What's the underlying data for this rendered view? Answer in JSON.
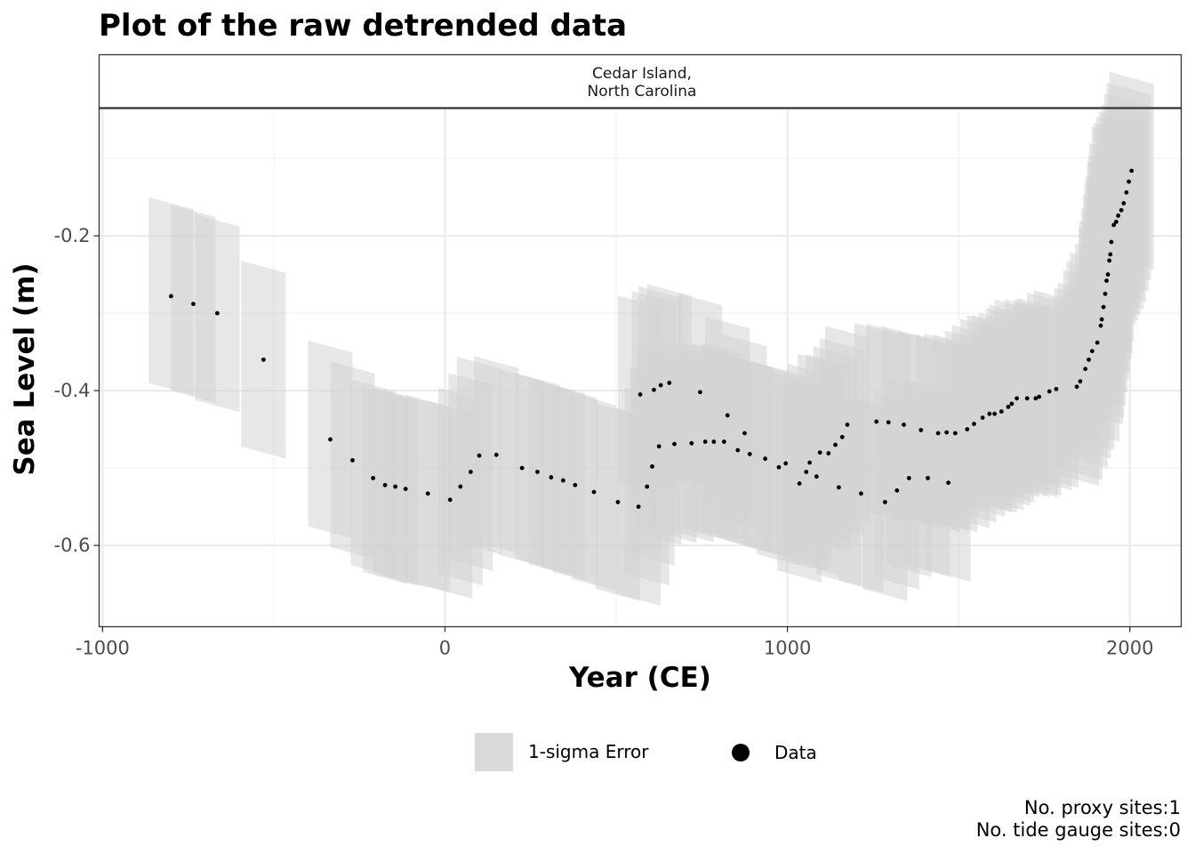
{
  "chart_data": {
    "type": "scatter",
    "title": "Plot of the raw detrended data",
    "facet_label": [
      "Cedar Island,",
      "North Carolina"
    ],
    "xlabel": "Year (CE)",
    "ylabel": "Sea Level (m)",
    "xlim": [
      -1010,
      2150
    ],
    "ylim": [
      -0.705,
      -0.035
    ],
    "x_ticks": [
      {
        "value": -1000,
        "label": "-1000"
      },
      {
        "value": 0,
        "label": "0"
      },
      {
        "value": 1000,
        "label": "1000"
      },
      {
        "value": 2000,
        "label": "2000"
      }
    ],
    "y_ticks": [
      {
        "value": -0.2,
        "label": "-0.2"
      },
      {
        "value": -0.4,
        "label": "-0.4"
      },
      {
        "value": -0.6,
        "label": "-0.6"
      }
    ],
    "grid": true,
    "legend_position": "bottom",
    "legend": [
      {
        "key": "error",
        "label": "1-sigma Error",
        "color": "#d9d9d9"
      },
      {
        "key": "data",
        "label": "Data",
        "color": "#000000"
      }
    ],
    "error_color": "#d3d3d3",
    "point_color": "#000000",
    "age_error_years": 65,
    "rsl_error_m": 0.12,
    "points": [
      [
        -800,
        -0.278
      ],
      [
        -735,
        -0.288
      ],
      [
        -665,
        -0.3
      ],
      [
        -530,
        -0.36
      ],
      [
        -335,
        -0.463
      ],
      [
        -270,
        -0.49
      ],
      [
        -210,
        -0.513
      ],
      [
        -175,
        -0.522
      ],
      [
        -145,
        -0.524
      ],
      [
        -115,
        -0.527
      ],
      [
        -50,
        -0.533
      ],
      [
        15,
        -0.541
      ],
      [
        45,
        -0.524
      ],
      [
        75,
        -0.505
      ],
      [
        100,
        -0.484
      ],
      [
        150,
        -0.483
      ],
      [
        225,
        -0.5
      ],
      [
        270,
        -0.505
      ],
      [
        310,
        -0.512
      ],
      [
        345,
        -0.516
      ],
      [
        380,
        -0.522
      ],
      [
        435,
        -0.531
      ],
      [
        505,
        -0.544
      ],
      [
        565,
        -0.55
      ],
      [
        570,
        -0.405
      ],
      [
        590,
        -0.524
      ],
      [
        605,
        -0.498
      ],
      [
        610,
        -0.399
      ],
      [
        625,
        -0.472
      ],
      [
        630,
        -0.393
      ],
      [
        655,
        -0.39
      ],
      [
        670,
        -0.469
      ],
      [
        720,
        -0.468
      ],
      [
        745,
        -0.402
      ],
      [
        760,
        -0.466
      ],
      [
        785,
        -0.466
      ],
      [
        815,
        -0.466
      ],
      [
        825,
        -0.432
      ],
      [
        855,
        -0.477
      ],
      [
        875,
        -0.455
      ],
      [
        890,
        -0.482
      ],
      [
        935,
        -0.488
      ],
      [
        975,
        -0.499
      ],
      [
        995,
        -0.494
      ],
      [
        1035,
        -0.52
      ],
      [
        1055,
        -0.505
      ],
      [
        1065,
        -0.493
      ],
      [
        1085,
        -0.511
      ],
      [
        1095,
        -0.48
      ],
      [
        1120,
        -0.481
      ],
      [
        1140,
        -0.47
      ],
      [
        1150,
        -0.525
      ],
      [
        1160,
        -0.46
      ],
      [
        1175,
        -0.444
      ],
      [
        1215,
        -0.533
      ],
      [
        1260,
        -0.44
      ],
      [
        1285,
        -0.544
      ],
      [
        1295,
        -0.441
      ],
      [
        1320,
        -0.529
      ],
      [
        1340,
        -0.444
      ],
      [
        1355,
        -0.513
      ],
      [
        1390,
        -0.451
      ],
      [
        1410,
        -0.513
      ],
      [
        1440,
        -0.455
      ],
      [
        1465,
        -0.454
      ],
      [
        1470,
        -0.519
      ],
      [
        1490,
        -0.455
      ],
      [
        1525,
        -0.45
      ],
      [
        1545,
        -0.443
      ],
      [
        1570,
        -0.435
      ],
      [
        1590,
        -0.43
      ],
      [
        1605,
        -0.43
      ],
      [
        1625,
        -0.427
      ],
      [
        1645,
        -0.421
      ],
      [
        1655,
        -0.417
      ],
      [
        1670,
        -0.41
      ],
      [
        1700,
        -0.41
      ],
      [
        1725,
        -0.41
      ],
      [
        1735,
        -0.408
      ],
      [
        1765,
        -0.401
      ],
      [
        1785,
        -0.398
      ],
      [
        1845,
        -0.395
      ],
      [
        1855,
        -0.388
      ],
      [
        1870,
        -0.372
      ],
      [
        1880,
        -0.36
      ],
      [
        1890,
        -0.349
      ],
      [
        1905,
        -0.338
      ],
      [
        1915,
        -0.316
      ],
      [
        1918,
        -0.308
      ],
      [
        1923,
        -0.292
      ],
      [
        1928,
        -0.275
      ],
      [
        1932,
        -0.258
      ],
      [
        1936,
        -0.25
      ],
      [
        1940,
        -0.232
      ],
      [
        1943,
        -0.224
      ],
      [
        1946,
        -0.208
      ],
      [
        1953,
        -0.186
      ],
      [
        1960,
        -0.182
      ],
      [
        1966,
        -0.174
      ],
      [
        1975,
        -0.167
      ],
      [
        1982,
        -0.158
      ],
      [
        1990,
        -0.144
      ],
      [
        1997,
        -0.13
      ],
      [
        2005,
        -0.116
      ]
    ],
    "caption": [
      "No. proxy sites:1",
      "No. tide gauge sites:0"
    ]
  }
}
